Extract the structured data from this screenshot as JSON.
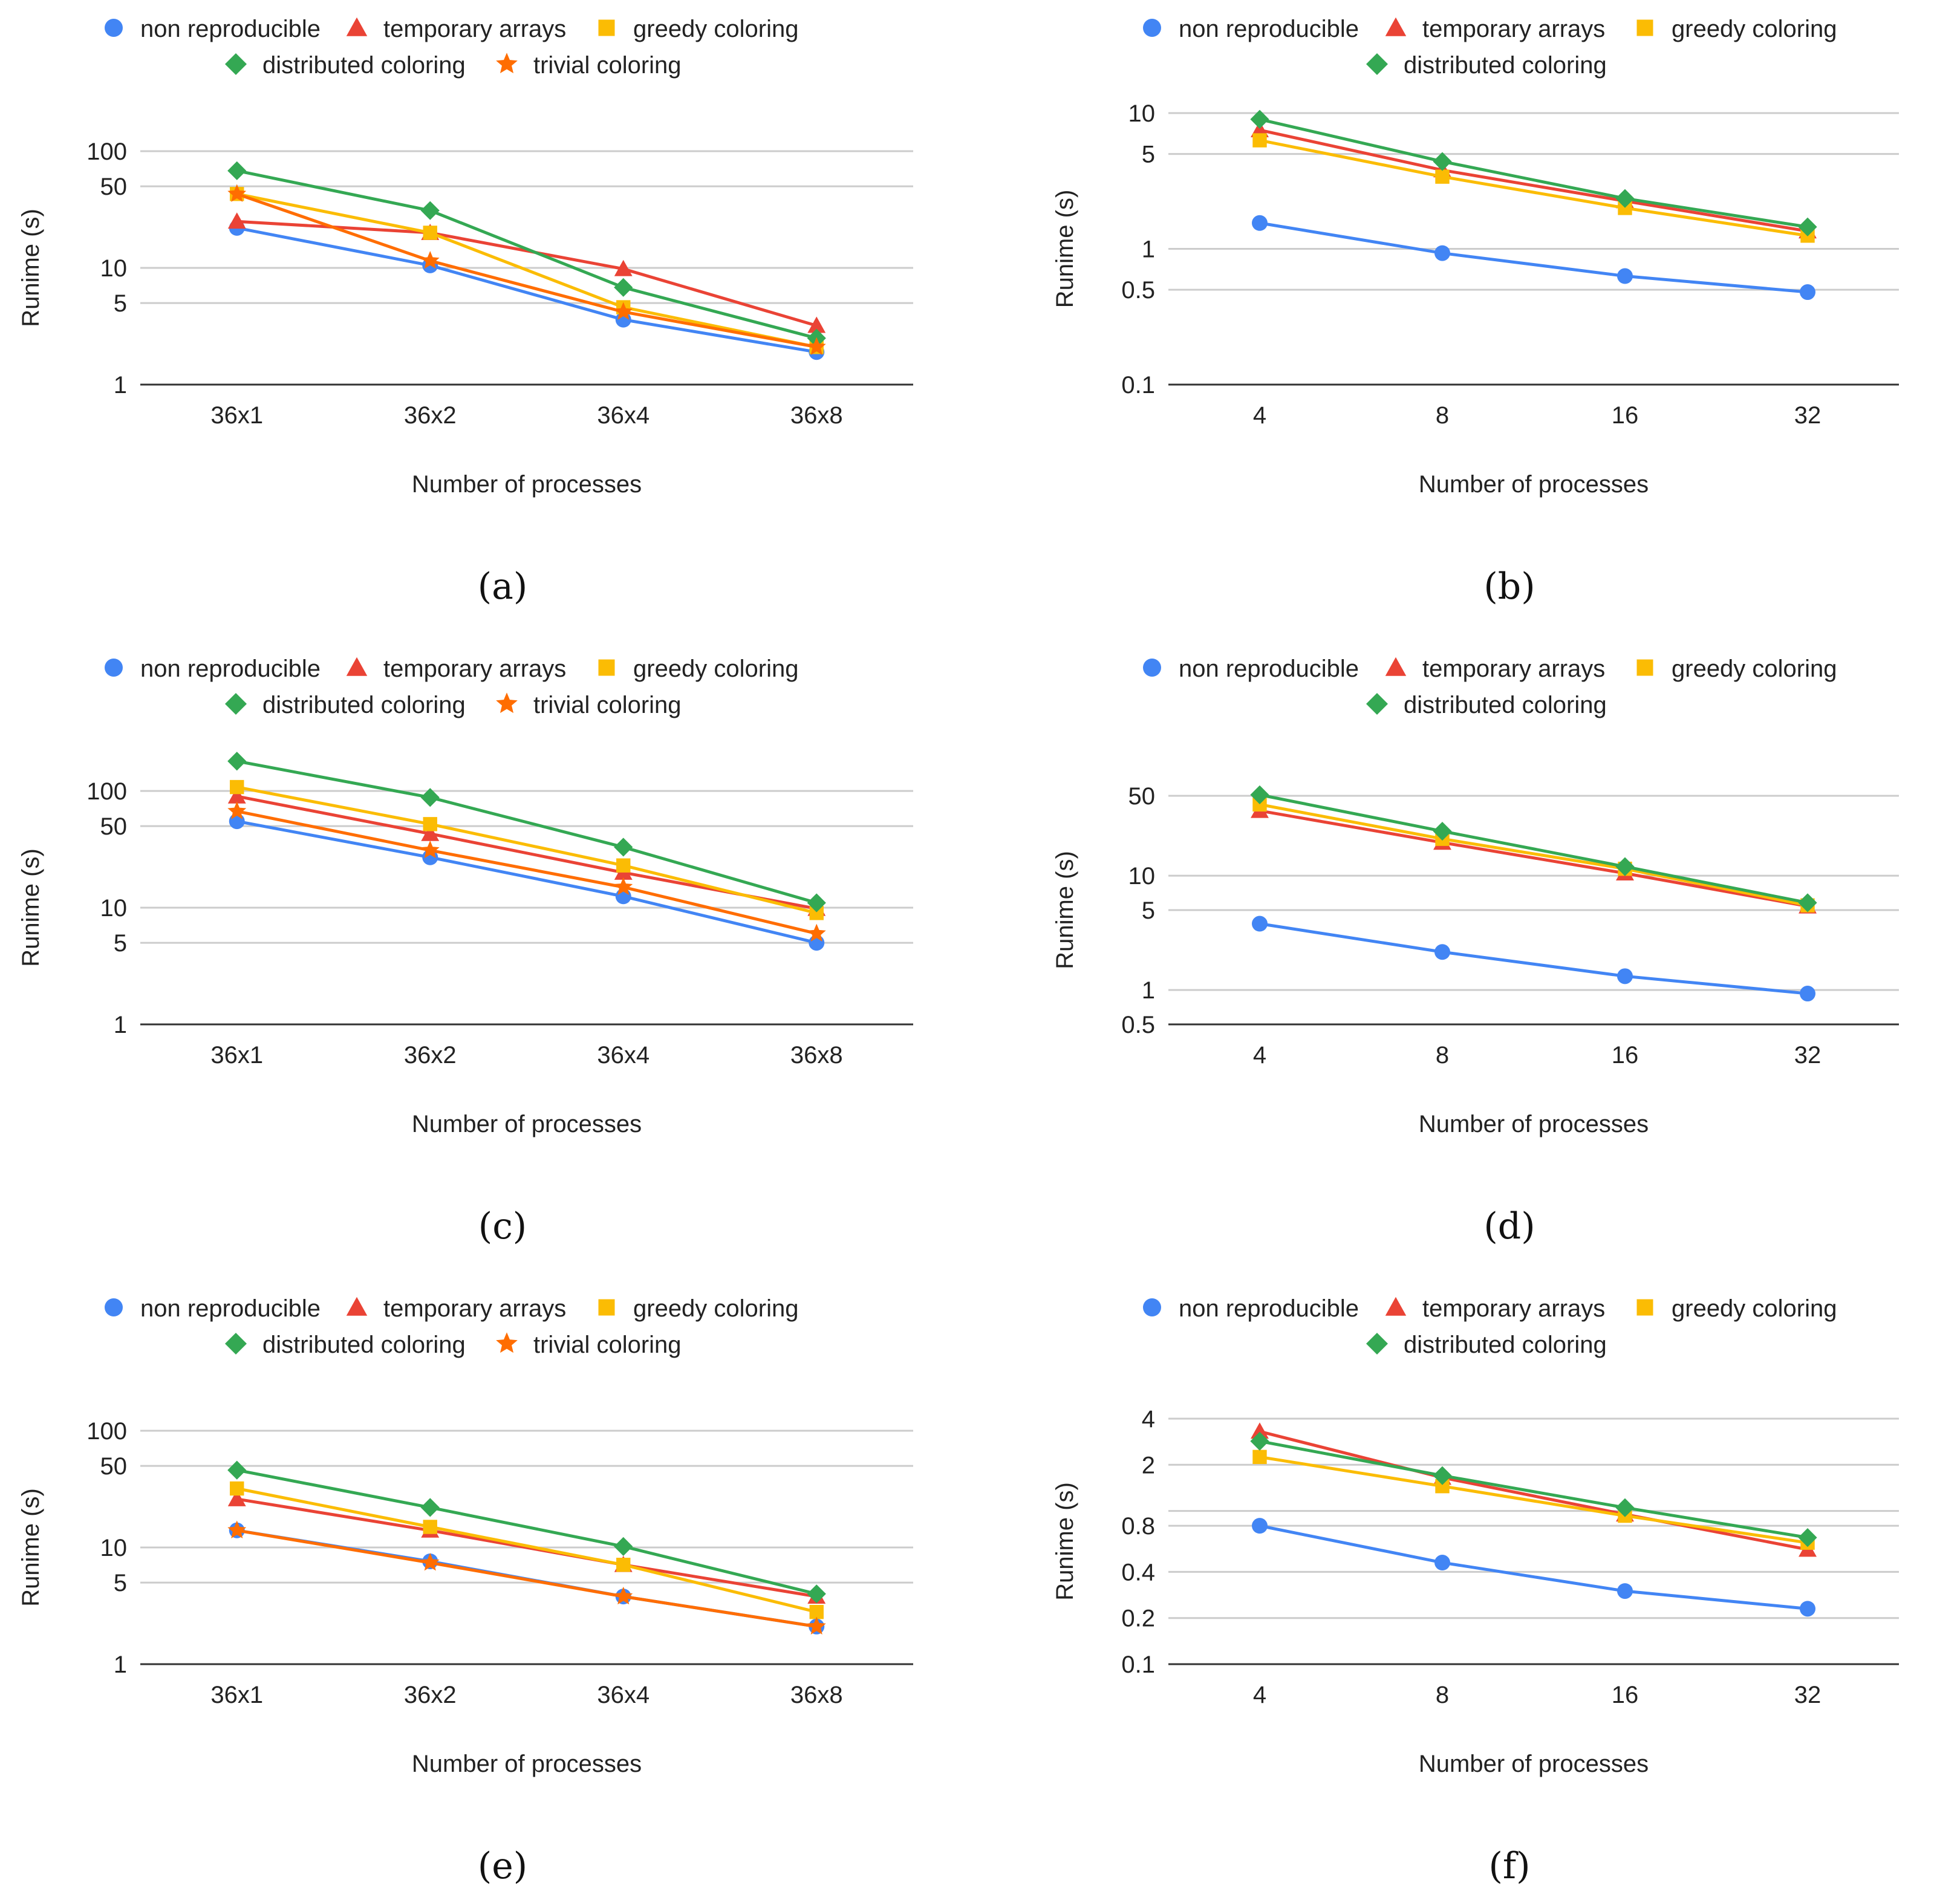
{
  "colors": {
    "non reproducible": "#4285F4",
    "temporary arrays": "#EA4335",
    "greedy coloring": "#FBBC04",
    "distributed coloring": "#34A853",
    "trivial coloring": "#FF6D01",
    "grid": "#cccccc",
    "axis": "#333333",
    "text": "#222222"
  },
  "chart_data": [
    {
      "type": "line",
      "caption": "(a)",
      "xlabel": "Number of processes",
      "ylabel": "Runime (s)",
      "yscale": "log",
      "ylim": [
        1,
        100
      ],
      "yticks": [
        "1",
        "5",
        "10",
        "50",
        "100"
      ],
      "categories": [
        "36x1",
        "36x2",
        "36x4",
        "36x8"
      ],
      "legend": [
        "non reproducible",
        "temporary arrays",
        "greedy coloring",
        "distributed coloring",
        "trivial coloring"
      ],
      "series": [
        {
          "name": "non reproducible",
          "marker": "circle",
          "values": [
            22,
            10.5,
            3.6,
            1.9
          ]
        },
        {
          "name": "temporary arrays",
          "marker": "triangle",
          "values": [
            25,
            20,
            9.8,
            3.2
          ]
        },
        {
          "name": "greedy coloring",
          "marker": "square",
          "values": [
            43,
            20,
            4.6,
            2.1
          ]
        },
        {
          "name": "distributed coloring",
          "marker": "diamond",
          "values": [
            68,
            31,
            6.8,
            2.5
          ]
        },
        {
          "name": "trivial coloring",
          "marker": "star",
          "values": [
            43,
            11.5,
            4.2,
            2.1
          ]
        }
      ]
    },
    {
      "type": "line",
      "caption": "(b)",
      "xlabel": "Number of processes",
      "ylabel": "Runime (s)",
      "yscale": "log",
      "ylim": [
        0.1,
        10
      ],
      "yticks": [
        "0.1",
        "0.5",
        "1",
        "5",
        "10"
      ],
      "categories": [
        "4",
        "8",
        "16",
        "32"
      ],
      "legend": [
        "non reproducible",
        "temporary arrays",
        "greedy coloring",
        "distributed coloring"
      ],
      "series": [
        {
          "name": "non reproducible",
          "marker": "circle",
          "values": [
            1.55,
            0.93,
            0.63,
            0.48
          ]
        },
        {
          "name": "temporary arrays",
          "marker": "triangle",
          "values": [
            7.5,
            3.8,
            2.25,
            1.35
          ]
        },
        {
          "name": "greedy coloring",
          "marker": "square",
          "values": [
            6.3,
            3.4,
            2.0,
            1.25
          ]
        },
        {
          "name": "distributed coloring",
          "marker": "diamond",
          "values": [
            9.0,
            4.4,
            2.35,
            1.45
          ]
        }
      ]
    },
    {
      "type": "line",
      "caption": "(c)",
      "xlabel": "Number of processes",
      "ylabel": "Runime (s)",
      "yscale": "log",
      "ylim": [
        1,
        100
      ],
      "yticks": [
        "1",
        "5",
        "10",
        "50",
        "100"
      ],
      "categories": [
        "36x1",
        "36x2",
        "36x4",
        "36x8"
      ],
      "legend": [
        "non reproducible",
        "temporary arrays",
        "greedy coloring",
        "distributed coloring",
        "trivial coloring"
      ],
      "series": [
        {
          "name": "non reproducible",
          "marker": "circle",
          "values": [
            55,
            27,
            12.5,
            5.0
          ]
        },
        {
          "name": "temporary arrays",
          "marker": "triangle",
          "values": [
            90,
            43,
            20,
            9.8
          ]
        },
        {
          "name": "greedy coloring",
          "marker": "square",
          "values": [
            108,
            52,
            23,
            9.0
          ]
        },
        {
          "name": "distributed coloring",
          "marker": "diamond",
          "values": [
            180,
            88,
            33,
            11
          ]
        },
        {
          "name": "trivial coloring",
          "marker": "star",
          "values": [
            67,
            31,
            15,
            6.0
          ]
        }
      ]
    },
    {
      "type": "line",
      "caption": "(d)",
      "xlabel": "Number of processes",
      "ylabel": "Runime (s)",
      "yscale": "log",
      "ylim": [
        0.5,
        50
      ],
      "yticks": [
        "0.5",
        "1",
        "5",
        "10",
        "50"
      ],
      "categories": [
        "4",
        "8",
        "16",
        "32"
      ],
      "legend": [
        "non reproducible",
        "temporary arrays",
        "greedy coloring",
        "distributed coloring"
      ],
      "series": [
        {
          "name": "non reproducible",
          "marker": "circle",
          "values": [
            3.8,
            2.15,
            1.32,
            0.93
          ]
        },
        {
          "name": "temporary arrays",
          "marker": "triangle",
          "values": [
            37,
            19.5,
            10.5,
            5.4
          ]
        },
        {
          "name": "greedy coloring",
          "marker": "square",
          "values": [
            42,
            21,
            11.5,
            5.5
          ]
        },
        {
          "name": "distributed coloring",
          "marker": "diamond",
          "values": [
            51,
            24.5,
            12,
            5.8
          ]
        }
      ]
    },
    {
      "type": "line",
      "caption": "(e)",
      "xlabel": "Number of processes",
      "ylabel": "Runime (s)",
      "yscale": "log",
      "ylim": [
        1,
        100
      ],
      "yticks": [
        "1",
        "5",
        "10",
        "50",
        "100"
      ],
      "categories": [
        "36x1",
        "36x2",
        "36x4",
        "36x8"
      ],
      "legend": [
        "non reproducible",
        "temporary arrays",
        "greedy coloring",
        "distributed coloring",
        "trivial coloring"
      ],
      "series": [
        {
          "name": "non reproducible",
          "marker": "circle",
          "values": [
            14,
            7.6,
            3.8,
            2.1
          ]
        },
        {
          "name": "temporary arrays",
          "marker": "triangle",
          "values": [
            26,
            14,
            7.1,
            3.8
          ]
        },
        {
          "name": "greedy coloring",
          "marker": "square",
          "values": [
            32,
            15,
            7.1,
            2.8
          ]
        },
        {
          "name": "distributed coloring",
          "marker": "diamond",
          "values": [
            46,
            22,
            10.2,
            4.0
          ]
        },
        {
          "name": "trivial coloring",
          "marker": "star",
          "values": [
            14,
            7.4,
            3.8,
            2.1
          ]
        }
      ]
    },
    {
      "type": "line",
      "caption": "(f)",
      "xlabel": "Number of processes",
      "ylabel": "Runime (s)",
      "yscale": "log",
      "ylim": [
        0.1,
        4
      ],
      "yticks": [
        "0.1",
        "0.2",
        "0.4",
        "0.8",
        "2",
        "4"
      ],
      "extra_gridlines": [
        1
      ],
      "categories": [
        "4",
        "8",
        "16",
        "32"
      ],
      "legend": [
        "non reproducible",
        "temporary arrays",
        "greedy coloring",
        "distributed coloring"
      ],
      "series": [
        {
          "name": "non reproducible",
          "marker": "circle",
          "values": [
            0.8,
            0.46,
            0.3,
            0.23
          ]
        },
        {
          "name": "temporary arrays",
          "marker": "triangle",
          "values": [
            3.3,
            1.65,
            0.95,
            0.56
          ]
        },
        {
          "name": "greedy coloring",
          "marker": "square",
          "values": [
            2.25,
            1.45,
            0.93,
            0.62
          ]
        },
        {
          "name": "distributed coloring",
          "marker": "diamond",
          "values": [
            2.85,
            1.7,
            1.05,
            0.67
          ]
        }
      ]
    }
  ]
}
